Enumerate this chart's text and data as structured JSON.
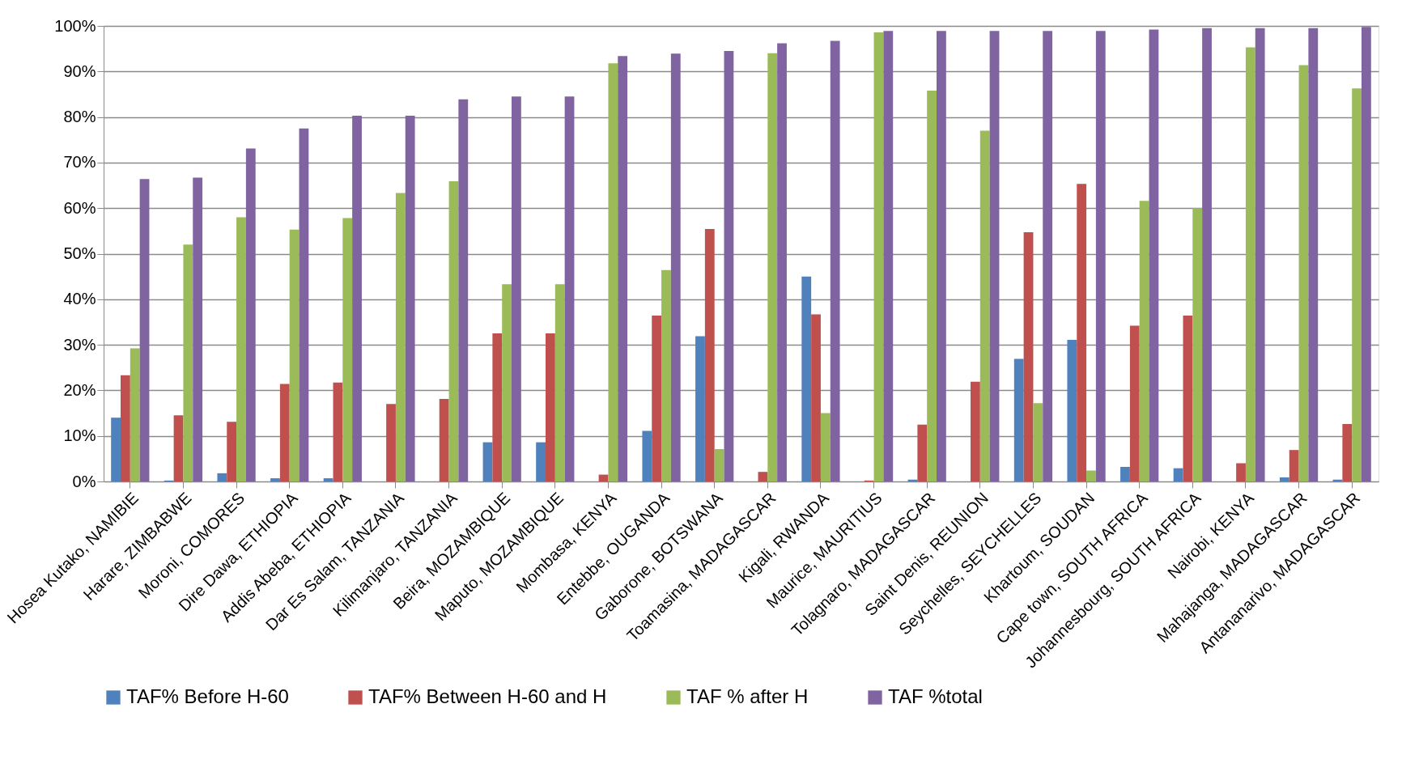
{
  "chart_data": {
    "type": "bar",
    "categories": [
      "Hosea Kutako, NAMIBIE",
      "Harare, ZIMBABWE",
      "Moroni, COMORES",
      "Dire Dawa, ETHIOPIA",
      "Addis Abeba, ETHIOPIA",
      "Dar Es Salam, TANZANIA",
      "Kilimanjaro, TANZANIA",
      "Beira, MOZAMBIQUE",
      "Maputo, MOZAMBIQUE",
      "Mombasa, KENYA",
      "Entebbe, OUGANDA",
      "Gaborone, BOTSWANA",
      "Toamasina, MADAGASCAR",
      "Kigali, RWANDA",
      "Maurice, MAURITIUS",
      "Tolagnaro, MADAGASCAR",
      "Saint Denis, REUNION",
      "Seychelles, SEYCHELLES",
      "Khartoum, SOUDAN",
      "Cape town, SOUTH AFRICA",
      "Johannesbourg, SOUTH AFRICA",
      "Nairobi, KENYA",
      "Mahajanga, MADAGASCAR",
      "Antananarivo, MADAGASCAR"
    ],
    "series": [
      {
        "name": "TAF% Before H-60",
        "color": "#4f81bd",
        "values": [
          14,
          0.2,
          1.8,
          0.7,
          0.7,
          0,
          0,
          8.6,
          8.6,
          0,
          11.1,
          31.9,
          0,
          45,
          null,
          0.4,
          0,
          26.9,
          31.1,
          3.2,
          2.9,
          0,
          0.9,
          0.4
        ]
      },
      {
        "name": "TAF% Between H-60 and H",
        "color": "#c0504d",
        "values": [
          23.3,
          14.5,
          13.1,
          21.4,
          21.7,
          17,
          18.1,
          32.5,
          32.5,
          1.5,
          36.4,
          55.4,
          2.1,
          36.7,
          0.2,
          12.5,
          21.9,
          54.7,
          65.3,
          34.2,
          36.4,
          4,
          6.9,
          12.6
        ]
      },
      {
        "name": "TAF % after H",
        "color": "#9bbb59",
        "values": [
          29.2,
          52,
          58,
          55.3,
          57.8,
          63.3,
          65.9,
          43.3,
          43.3,
          91.8,
          46.4,
          7.1,
          94,
          15,
          98.6,
          85.8,
          77,
          17.2,
          2.4,
          61.6,
          60,
          95.3,
          91.4,
          86.3
        ]
      },
      {
        "name": "TAF %total",
        "color": "#8064a2",
        "values": [
          66.4,
          66.7,
          73.1,
          77.5,
          80.3,
          80.3,
          83.9,
          84.5,
          84.5,
          93.4,
          93.9,
          94.5,
          96.2,
          96.7,
          98.9,
          98.9,
          98.9,
          98.9,
          98.9,
          99.2,
          99.5,
          99.5,
          99.5,
          99.8
        ]
      }
    ],
    "ylim": [
      0,
      100
    ],
    "yticks": [
      {
        "value": 0,
        "label": "0%"
      },
      {
        "value": 10,
        "label": "10%"
      },
      {
        "value": 20,
        "label": "20%"
      },
      {
        "value": 30,
        "label": "30%"
      },
      {
        "value": 40,
        "label": "40%"
      },
      {
        "value": 50,
        "label": "50%"
      },
      {
        "value": 60,
        "label": "60%"
      },
      {
        "value": 70,
        "label": "70%"
      },
      {
        "value": 80,
        "label": "80%"
      },
      {
        "value": 90,
        "label": "90%"
      },
      {
        "value": 100,
        "label": "100%"
      }
    ],
    "grid": "y",
    "legend": "bottom"
  }
}
